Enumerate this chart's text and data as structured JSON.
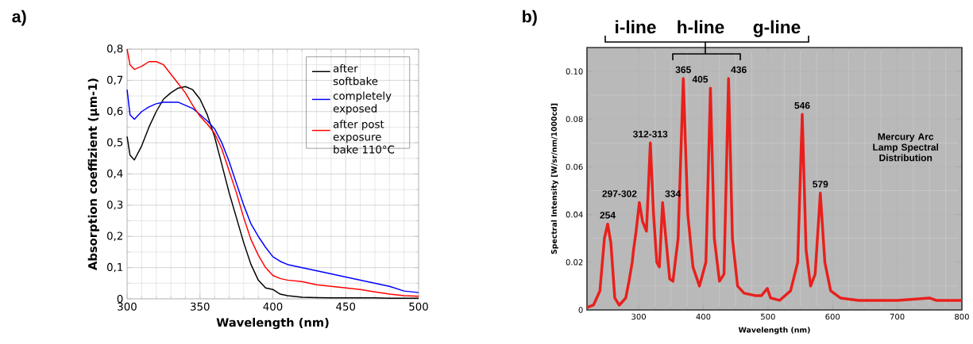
{
  "chart_data": [
    {
      "type": "line",
      "title": "a)",
      "xlabel": "Wavelength (nm)",
      "ylabel": "Absorption coeffizient (µm-1)",
      "x": [
        300,
        302,
        305,
        310,
        315,
        320,
        325,
        330,
        335,
        340,
        345,
        350,
        355,
        360,
        365,
        370,
        375,
        380,
        385,
        390,
        395,
        400,
        405,
        410,
        420,
        430,
        440,
        450,
        460,
        470,
        480,
        490,
        500
      ],
      "series": [
        {
          "name": "after softbake",
          "color": "#000000",
          "values": [
            0.52,
            0.46,
            0.445,
            0.49,
            0.55,
            0.6,
            0.64,
            0.66,
            0.675,
            0.68,
            0.67,
            0.64,
            0.59,
            0.52,
            0.43,
            0.34,
            0.26,
            0.18,
            0.11,
            0.06,
            0.035,
            0.03,
            0.015,
            0.01,
            0.005,
            0.004,
            0.003,
            0.003,
            0.003,
            0.003,
            0.002,
            0.002,
            0.002
          ]
        },
        {
          "name": "completely exposed",
          "color": "#0000ff",
          "values": [
            0.67,
            0.59,
            0.575,
            0.6,
            0.615,
            0.625,
            0.63,
            0.63,
            0.63,
            0.62,
            0.61,
            0.59,
            0.57,
            0.545,
            0.5,
            0.44,
            0.37,
            0.3,
            0.24,
            0.2,
            0.165,
            0.135,
            0.12,
            0.11,
            0.1,
            0.09,
            0.08,
            0.07,
            0.06,
            0.05,
            0.04,
            0.025,
            0.02
          ]
        },
        {
          "name": "after post exposure bake 110°C",
          "color": "#ff0000",
          "values": [
            0.8,
            0.75,
            0.735,
            0.745,
            0.76,
            0.76,
            0.75,
            0.72,
            0.69,
            0.66,
            0.62,
            0.585,
            0.56,
            0.53,
            0.48,
            0.41,
            0.34,
            0.26,
            0.19,
            0.14,
            0.1,
            0.075,
            0.065,
            0.06,
            0.055,
            0.045,
            0.04,
            0.035,
            0.03,
            0.022,
            0.015,
            0.01,
            0.008
          ]
        }
      ],
      "xlim": [
        300,
        500
      ],
      "ylim": [
        0,
        0.8
      ],
      "xticks": [
        300,
        350,
        400,
        450,
        500
      ],
      "yticks": [
        0,
        {
          "value": 0.1,
          "label": "0,1"
        },
        {
          "value": 0.2,
          "label": "0,2"
        },
        {
          "value": 0.3,
          "label": "0,3"
        },
        {
          "value": 0.4,
          "label": "0,4"
        },
        {
          "value": 0.5,
          "label": "0,5"
        },
        {
          "value": 0.6,
          "label": "0,6"
        },
        {
          "value": 0.7,
          "label": "0,7"
        },
        {
          "value": 0.8,
          "label": "0,8"
        }
      ],
      "grid": true,
      "legend": "top right"
    },
    {
      "type": "line",
      "title": "b)",
      "xlabel": "Wavelength (nm)",
      "ylabel": "Spectral Intensity [W/sr/nm/1000cd]",
      "x": [
        220,
        230,
        240,
        247,
        252,
        257,
        263,
        270,
        280,
        285,
        290,
        292,
        296,
        301,
        306,
        312,
        318,
        323,
        328,
        332,
        337,
        341,
        348,
        353,
        361,
        369,
        376,
        384,
        394,
        404,
        411,
        417,
        425,
        432,
        439,
        445,
        453,
        463,
        480,
        490,
        499,
        504,
        518,
        535,
        546,
        553,
        559,
        566,
        573,
        581,
        588,
        597,
        612,
        640,
        700,
        750,
        760,
        800
      ],
      "series": [
        {
          "color": "#e8201c",
          "values": [
            0.001,
            0.002,
            0.008,
            0.03,
            0.036,
            0.028,
            0.005,
            0.002,
            0.005,
            0.012,
            0.02,
            0.025,
            0.033,
            0.045,
            0.037,
            0.033,
            0.07,
            0.04,
            0.02,
            0.018,
            0.045,
            0.033,
            0.013,
            0.012,
            0.03,
            0.097,
            0.04,
            0.018,
            0.01,
            0.02,
            0.093,
            0.03,
            0.012,
            0.015,
            0.097,
            0.03,
            0.01,
            0.007,
            0.006,
            0.006,
            0.009,
            0.005,
            0.004,
            0.008,
            0.02,
            0.082,
            0.025,
            0.01,
            0.015,
            0.049,
            0.02,
            0.008,
            0.005,
            0.004,
            0.004,
            0.005,
            0.004,
            0.004
          ]
        }
      ],
      "xlim": [
        220,
        800
      ],
      "ylim": [
        0,
        0.11
      ],
      "xticks": [
        300,
        400,
        500,
        600,
        700,
        800
      ],
      "yticks": [
        0,
        {
          "value": 0.02,
          "label": "0.02"
        },
        {
          "value": 0.04,
          "label": "0.04"
        },
        {
          "value": 0.06,
          "label": "0.06"
        },
        {
          "value": 0.08,
          "label": "0.08"
        },
        {
          "value": 0.1,
          "label": "0.10"
        }
      ],
      "grid": true,
      "annotations": [
        "i-line",
        "h-line",
        "g-line",
        "Mercury Arc Lamp Spectral Distribution",
        {
          "text": "254",
          "x": 252,
          "y": 0.036
        },
        {
          "text": "297-302",
          "x": 301,
          "y": 0.045
        },
        {
          "text": "312-313",
          "x": 318,
          "y": 0.07
        },
        {
          "text": "334",
          "x": 337,
          "y": 0.045
        },
        {
          "text": "365",
          "x": 369,
          "y": 0.097
        },
        {
          "text": "405",
          "x": 411,
          "y": 0.093
        },
        {
          "text": "436",
          "x": 439,
          "y": 0.097
        },
        {
          "text": "546",
          "x": 553,
          "y": 0.082
        },
        {
          "text": "579",
          "x": 581,
          "y": 0.049
        }
      ]
    }
  ]
}
